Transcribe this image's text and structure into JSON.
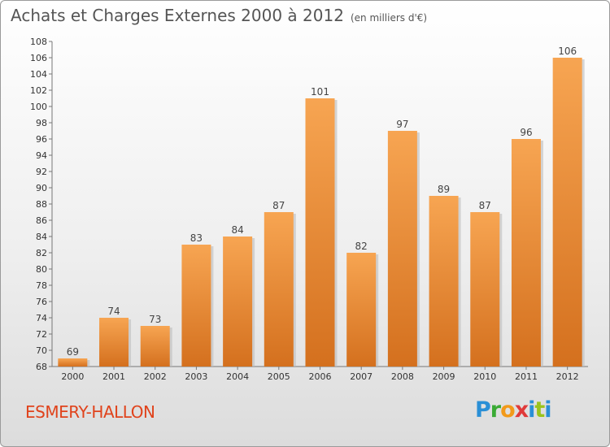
{
  "header": {
    "title": "Achats et Charges Externes 2000 à 2012",
    "subtitle": "(en milliers d'€)"
  },
  "footer": {
    "location": "ESMERY-HALLON",
    "logo_letters": [
      {
        "ch": "P",
        "color": "#2a8fd6"
      },
      {
        "ch": "r",
        "color": "#3aaa35"
      },
      {
        "ch": "o",
        "color": "#f29a1a"
      },
      {
        "ch": "x",
        "color": "#e03a3a"
      },
      {
        "ch": "i",
        "color": "#2a8fd6"
      },
      {
        "ch": "t",
        "color": "#9ac31c"
      },
      {
        "ch": "i",
        "color": "#2a8fd6"
      }
    ]
  },
  "chart_data": {
    "type": "bar",
    "categories": [
      "2000",
      "2001",
      "2002",
      "2003",
      "2004",
      "2005",
      "2006",
      "2007",
      "2008",
      "2009",
      "2010",
      "2011",
      "2012"
    ],
    "values": [
      69,
      74,
      73,
      83,
      84,
      87,
      101,
      82,
      97,
      89,
      87,
      96,
      106
    ],
    "ylim": [
      68,
      108
    ],
    "ytick_step": 2,
    "grid": false,
    "bar_color_top": "#f7a552",
    "bar_color_bottom": "#d4701e"
  }
}
